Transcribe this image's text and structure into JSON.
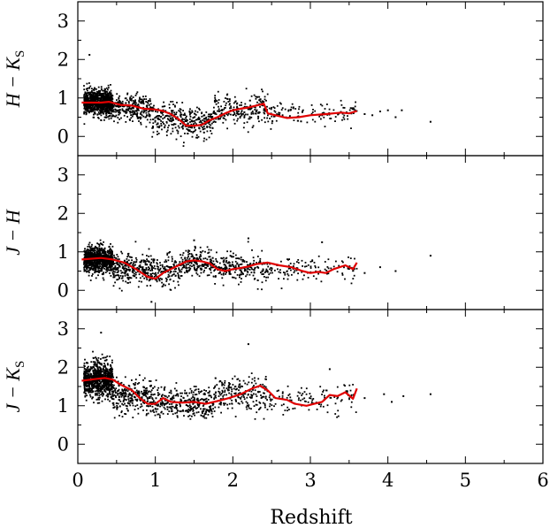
{
  "chart_data": [
    {
      "type": "scatter",
      "ylabel": "H − K",
      "ylabel_sub": "S",
      "xlim": [
        0,
        6
      ],
      "ylim": [
        -0.5,
        3.5
      ],
      "yticks": [
        "0",
        "1",
        "2",
        "3"
      ],
      "point_color": "#000000",
      "line_color": "#e00000",
      "series": [
        {
          "kind": "points",
          "clusters": [
            {
              "x": [
                0.08,
                0.45
              ],
              "y": 0.88,
              "spread": 0.16,
              "n": 900
            },
            {
              "x": [
                0.45,
                0.95
              ],
              "y": 0.72,
              "spread": 0.18,
              "n": 260
            },
            {
              "x": [
                0.95,
                1.35
              ],
              "y": 0.45,
              "spread": 0.2,
              "n": 150
            },
            {
              "x": [
                1.35,
                1.75
              ],
              "y": 0.35,
              "spread": 0.18,
              "n": 180
            },
            {
              "x": [
                1.75,
                2.45
              ],
              "y": 0.7,
              "spread": 0.2,
              "n": 220
            },
            {
              "x": [
                2.45,
                3.6
              ],
              "y": 0.58,
              "spread": 0.16,
              "n": 120
            }
          ],
          "outliers": [
            [
              0.15,
              2.12
            ],
            [
              4.0,
              0.68
            ],
            [
              4.18,
              0.68
            ],
            [
              3.9,
              0.65
            ],
            [
              4.55,
              0.38
            ],
            [
              3.7,
              0.58
            ],
            [
              3.8,
              0.55
            ],
            [
              4.1,
              0.5
            ]
          ]
        },
        {
          "kind": "median",
          "x": [
            0.05,
            0.3,
            0.4,
            0.55,
            0.7,
            0.85,
            1.0,
            1.1,
            1.2,
            1.3,
            1.4,
            1.5,
            1.6,
            1.7,
            1.8,
            1.9,
            2.0,
            2.1,
            2.2,
            2.3,
            2.4,
            2.45,
            2.55,
            2.7,
            2.85,
            3.0,
            3.2,
            3.4,
            3.5,
            3.6
          ],
          "y": [
            0.88,
            0.88,
            0.9,
            0.82,
            0.8,
            0.72,
            0.7,
            0.66,
            0.58,
            0.45,
            0.28,
            0.28,
            0.3,
            0.42,
            0.5,
            0.6,
            0.68,
            0.72,
            0.75,
            0.8,
            0.85,
            0.6,
            0.55,
            0.48,
            0.5,
            0.55,
            0.58,
            0.62,
            0.6,
            0.66
          ]
        }
      ]
    },
    {
      "type": "scatter",
      "ylabel": "J − H",
      "xlim": [
        0,
        6
      ],
      "ylim": [
        -0.5,
        3.5
      ],
      "yticks": [
        "0",
        "1",
        "2",
        "3"
      ],
      "point_color": "#000000",
      "line_color": "#e00000",
      "series": [
        {
          "kind": "points",
          "clusters": [
            {
              "x": [
                0.08,
                0.45
              ],
              "y": 0.8,
              "spread": 0.16,
              "n": 900
            },
            {
              "x": [
                0.45,
                0.95
              ],
              "y": 0.55,
              "spread": 0.2,
              "n": 260
            },
            {
              "x": [
                0.95,
                1.35
              ],
              "y": 0.5,
              "spread": 0.2,
              "n": 150
            },
            {
              "x": [
                1.35,
                1.75
              ],
              "y": 0.72,
              "spread": 0.18,
              "n": 180
            },
            {
              "x": [
                1.75,
                2.45
              ],
              "y": 0.58,
              "spread": 0.18,
              "n": 220
            },
            {
              "x": [
                2.45,
                3.6
              ],
              "y": 0.55,
              "spread": 0.16,
              "n": 120
            }
          ],
          "outliers": [
            [
              0.95,
              -0.3
            ],
            [
              1.5,
              1.3
            ],
            [
              2.2,
              1.35
            ],
            [
              3.15,
              1.25
            ],
            [
              4.55,
              0.9
            ],
            [
              3.9,
              0.6
            ],
            [
              4.1,
              0.5
            ],
            [
              3.7,
              0.45
            ]
          ]
        },
        {
          "kind": "median",
          "x": [
            0.05,
            0.3,
            0.45,
            0.6,
            0.75,
            0.9,
            1.0,
            1.1,
            1.2,
            1.3,
            1.4,
            1.5,
            1.6,
            1.7,
            1.8,
            1.9,
            2.0,
            2.1,
            2.2,
            2.3,
            2.45,
            2.6,
            2.75,
            2.9,
            3.0,
            3.1,
            3.2,
            3.3,
            3.45,
            3.55,
            3.6
          ],
          "y": [
            0.8,
            0.84,
            0.8,
            0.72,
            0.55,
            0.35,
            0.3,
            0.45,
            0.55,
            0.65,
            0.75,
            0.78,
            0.75,
            0.7,
            0.55,
            0.5,
            0.55,
            0.58,
            0.62,
            0.68,
            0.72,
            0.65,
            0.6,
            0.5,
            0.45,
            0.48,
            0.45,
            0.55,
            0.65,
            0.55,
            0.72
          ]
        }
      ]
    },
    {
      "type": "scatter",
      "ylabel": "J − K",
      "ylabel_sub": "S",
      "xlabel": "Redshift",
      "xlim": [
        0,
        6
      ],
      "xticks": [
        "0",
        "1",
        "2",
        "3",
        "4",
        "5",
        "6"
      ],
      "ylim": [
        -0.5,
        3.5
      ],
      "yticks": [
        "0",
        "1",
        "2",
        "3"
      ],
      "point_color": "#000000",
      "line_color": "#e00000",
      "series": [
        {
          "kind": "points",
          "clusters": [
            {
              "x": [
                0.08,
                0.45
              ],
              "y": 1.68,
              "spread": 0.22,
              "n": 900
            },
            {
              "x": [
                0.45,
                0.95
              ],
              "y": 1.25,
              "spread": 0.22,
              "n": 260
            },
            {
              "x": [
                0.95,
                1.35
              ],
              "y": 1.1,
              "spread": 0.2,
              "n": 150
            },
            {
              "x": [
                1.35,
                1.75
              ],
              "y": 1.05,
              "spread": 0.2,
              "n": 180
            },
            {
              "x": [
                1.75,
                2.45
              ],
              "y": 1.3,
              "spread": 0.22,
              "n": 220
            },
            {
              "x": [
                2.45,
                3.6
              ],
              "y": 1.15,
              "spread": 0.18,
              "n": 120
            }
          ],
          "outliers": [
            [
              0.3,
              2.9
            ],
            [
              2.2,
              2.6
            ],
            [
              3.25,
              1.95
            ],
            [
              4.55,
              1.3
            ],
            [
              4.2,
              1.25
            ],
            [
              3.95,
              1.3
            ],
            [
              4.05,
              1.1
            ],
            [
              3.7,
              1.2
            ]
          ]
        },
        {
          "kind": "median",
          "x": [
            0.05,
            0.25,
            0.35,
            0.45,
            0.55,
            0.7,
            0.8,
            0.9,
            1.0,
            1.1,
            1.2,
            1.35,
            1.5,
            1.65,
            1.8,
            1.95,
            2.1,
            2.25,
            2.35,
            2.45,
            2.55,
            2.7,
            2.8,
            2.95,
            3.05,
            3.15,
            3.25,
            3.35,
            3.45,
            3.55,
            3.6
          ],
          "y": [
            1.65,
            1.7,
            1.72,
            1.68,
            1.55,
            1.4,
            1.2,
            1.05,
            1.05,
            1.2,
            1.1,
            1.08,
            1.1,
            1.05,
            1.12,
            1.2,
            1.3,
            1.45,
            1.52,
            1.4,
            1.2,
            1.15,
            1.05,
            1.0,
            1.05,
            1.1,
            1.28,
            1.25,
            1.35,
            1.18,
            1.45
          ]
        }
      ]
    }
  ]
}
